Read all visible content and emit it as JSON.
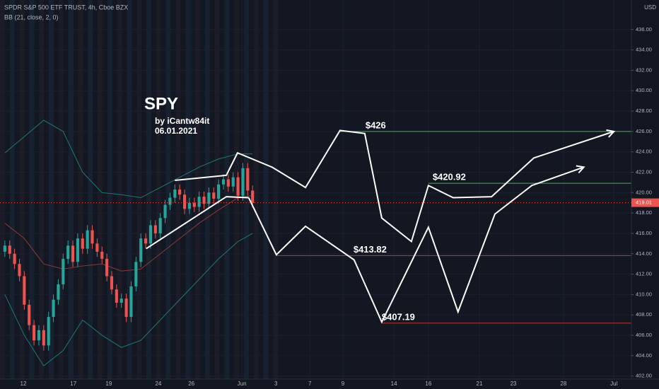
{
  "chart_data": {
    "type": "candlestick",
    "header": "SPDR S&P 500 ETF TRUST, 4h, Cboe BZX",
    "indicator": "BB (21, close, 2, 0)",
    "title": "SPY",
    "author": "by iCantw84it",
    "date": "06.01.2021",
    "currency": "USD",
    "xlim": [
      0,
      130
    ],
    "xticks": [
      {
        "value": 4.8,
        "label": "12"
      },
      {
        "value": 15.1,
        "label": "17"
      },
      {
        "value": 22.4,
        "label": "19"
      },
      {
        "value": 32.6,
        "label": "24"
      },
      {
        "value": 39.4,
        "label": "26"
      },
      {
        "value": 49.8,
        "label": "Jun"
      },
      {
        "value": 56.8,
        "label": "3"
      },
      {
        "value": 63.8,
        "label": "7"
      },
      {
        "value": 70.6,
        "label": "9"
      },
      {
        "value": 81.1,
        "label": "14"
      },
      {
        "value": 88.2,
        "label": "16"
      },
      {
        "value": 98.7,
        "label": "21"
      },
      {
        "value": 105.7,
        "label": "23"
      },
      {
        "value": 116,
        "label": "28"
      },
      {
        "value": 126.4,
        "label": "Jul"
      }
    ],
    "ylim": [
      401.7,
      438.9
    ],
    "yticks": [
      {
        "value": 402,
        "label": "402.00"
      },
      {
        "value": 404,
        "label": "404.00"
      },
      {
        "value": 406,
        "label": "406.00"
      },
      {
        "value": 408,
        "label": "408.00"
      },
      {
        "value": 410,
        "label": "410.00"
      },
      {
        "value": 412,
        "label": "412.00"
      },
      {
        "value": 414,
        "label": "414.00"
      },
      {
        "value": 416,
        "label": "416.00"
      },
      {
        "value": 418,
        "label": "418.00"
      },
      {
        "value": 420,
        "label": "420.00"
      },
      {
        "value": 422,
        "label": "422.00"
      },
      {
        "value": 424,
        "label": "424.00"
      },
      {
        "value": 426,
        "label": "426.00"
      },
      {
        "value": 428,
        "label": "428.00"
      },
      {
        "value": 430,
        "label": "430.00"
      },
      {
        "value": 432,
        "label": "432.00"
      },
      {
        "value": 434,
        "label": "434.00"
      },
      {
        "value": 436,
        "label": "436.00"
      }
    ],
    "up_color": "#26a69a",
    "down_color": "#ef5350",
    "x": [
      1,
      2,
      3,
      4,
      5,
      6,
      7,
      8,
      9,
      10,
      11,
      12,
      13,
      14,
      15,
      16,
      17,
      18,
      19,
      20,
      21,
      22,
      23,
      24,
      25,
      26,
      27,
      28,
      29,
      30,
      31,
      32,
      33,
      34,
      35,
      36,
      37,
      38,
      39,
      40,
      41,
      42,
      43,
      44,
      45,
      46,
      47,
      48,
      49,
      50,
      51,
      52
    ],
    "open": [
      414.2,
      414.8,
      414.0,
      413.0,
      411.8,
      409.0,
      407.0,
      405.5,
      406.5,
      405.0,
      407.8,
      409.5,
      411.0,
      413.5,
      414.8,
      413.2,
      415.5,
      414.5,
      416.3,
      415.0,
      414.2,
      413.5,
      411.8,
      410.5,
      409.2,
      409.6,
      407.8,
      410.8,
      413.2,
      415.5,
      415.0,
      416.8,
      416.0,
      417.5,
      418.8,
      419.5,
      420.3,
      419.8,
      418.4,
      419.0,
      418.6,
      419.6,
      418.9,
      420.0,
      419.4,
      420.8,
      421.3,
      420.6,
      421.5,
      419.7,
      422.4,
      420.2
    ],
    "high": [
      415.3,
      415.3,
      414.5,
      413.5,
      412.3,
      409.5,
      407.5,
      407.0,
      407.0,
      408.3,
      410.0,
      411.5,
      414.0,
      415.3,
      415.3,
      416.0,
      416.0,
      416.8,
      416.8,
      415.5,
      414.7,
      414.0,
      412.3,
      411.0,
      410.1,
      410.1,
      411.3,
      413.7,
      416.0,
      416.0,
      417.3,
      417.3,
      418.0,
      419.3,
      420.0,
      420.8,
      420.8,
      420.3,
      419.5,
      419.5,
      420.1,
      420.1,
      420.5,
      420.5,
      421.3,
      421.8,
      421.8,
      422.0,
      422.0,
      422.9,
      422.9,
      420.7
    ],
    "low": [
      413.7,
      413.5,
      412.5,
      411.3,
      408.5,
      406.5,
      405.0,
      405.0,
      404.5,
      404.5,
      407.3,
      409.0,
      410.5,
      413.0,
      412.7,
      412.7,
      414.0,
      414.0,
      414.5,
      413.7,
      413.0,
      411.3,
      410.0,
      408.7,
      408.7,
      407.3,
      407.3,
      410.3,
      412.7,
      414.5,
      414.5,
      415.5,
      415.5,
      417.0,
      418.3,
      419.0,
      419.3,
      417.9,
      417.9,
      418.1,
      418.1,
      418.4,
      418.4,
      418.9,
      418.9,
      420.3,
      420.1,
      420.1,
      419.2,
      419.2,
      419.7,
      418.5
    ],
    "close": [
      414.8,
      414.0,
      413.0,
      411.8,
      409.0,
      407.0,
      405.5,
      406.5,
      405.0,
      407.8,
      409.5,
      411.0,
      413.5,
      414.8,
      413.2,
      415.5,
      414.5,
      416.3,
      415.0,
      414.2,
      413.5,
      411.8,
      410.5,
      409.2,
      409.6,
      407.8,
      410.8,
      413.2,
      415.5,
      415.0,
      416.8,
      416.0,
      417.5,
      418.8,
      419.5,
      420.3,
      419.8,
      418.4,
      419.0,
      418.6,
      419.6,
      418.9,
      420.0,
      419.4,
      420.8,
      421.3,
      420.6,
      421.5,
      419.7,
      422.4,
      420.2,
      419.0
    ],
    "bands": {
      "x": [
        1,
        5,
        9,
        13,
        17,
        21,
        25,
        29,
        33,
        37,
        41,
        45,
        49,
        52
      ],
      "series": [
        {
          "color": "#1f7a72",
          "values": [
            423.9,
            425.5,
            427.1,
            426.0,
            422.0,
            420.0,
            419.8,
            419.5,
            420.5,
            421.5,
            422.5,
            423.3,
            423.8,
            423.8
          ]
        },
        {
          "color": "#8a3a3a",
          "values": [
            417.0,
            415.5,
            413.0,
            412.5,
            412.8,
            413.0,
            412.3,
            412.5,
            414.0,
            415.5,
            417.0,
            418.3,
            419.5,
            419.7
          ]
        },
        {
          "color": "#1f7a72",
          "values": [
            410.0,
            406.0,
            403.0,
            404.5,
            407.5,
            406.0,
            404.8,
            405.5,
            407.5,
            409.5,
            411.5,
            413.5,
            415.2,
            416.0
          ]
        }
      ]
    },
    "last_price": 419.01,
    "levels": [
      {
        "value": 426,
        "label": "$426",
        "x": 70.0,
        "color": "#4caf50"
      },
      {
        "value": 420.92,
        "label": "$420.92",
        "x": 88.2,
        "color": "#4caf50"
      },
      {
        "value": 413.82,
        "label": "$413.82",
        "x": 56.9,
        "color": "#d32f2f"
      },
      {
        "value": 407.19,
        "label": "$407.19",
        "x": 78.6,
        "color": "#d32f2f"
      }
    ],
    "drawings": [
      {
        "arrow": false,
        "x": [
          30.1,
          46.6,
          51.2
        ],
        "y": [
          414.5,
          419.6,
          419.5
        ]
      },
      {
        "arrow": true,
        "x": [
          36.0,
          46.6,
          48.9,
          56.0,
          62.9,
          70.0,
          75.1,
          78.6,
          84.7,
          88.2,
          93.3,
          101.2,
          109.9,
          126.4
        ],
        "y": [
          421.2,
          421.7,
          423.9,
          422.5,
          420.5,
          426.1,
          425.8,
          417.5,
          415.2,
          420.7,
          419.5,
          419.6,
          423.4,
          426.0
        ]
      },
      {
        "arrow": true,
        "x": [
          51.2,
          56.9,
          62.9,
          72.9,
          78.6,
          88.2,
          94.3,
          101.9,
          109.5,
          120.2
        ],
        "y": [
          419.5,
          413.9,
          416.7,
          413.4,
          407.3,
          416.6,
          408.3,
          417.9,
          420.7,
          422.5
        ]
      }
    ]
  }
}
